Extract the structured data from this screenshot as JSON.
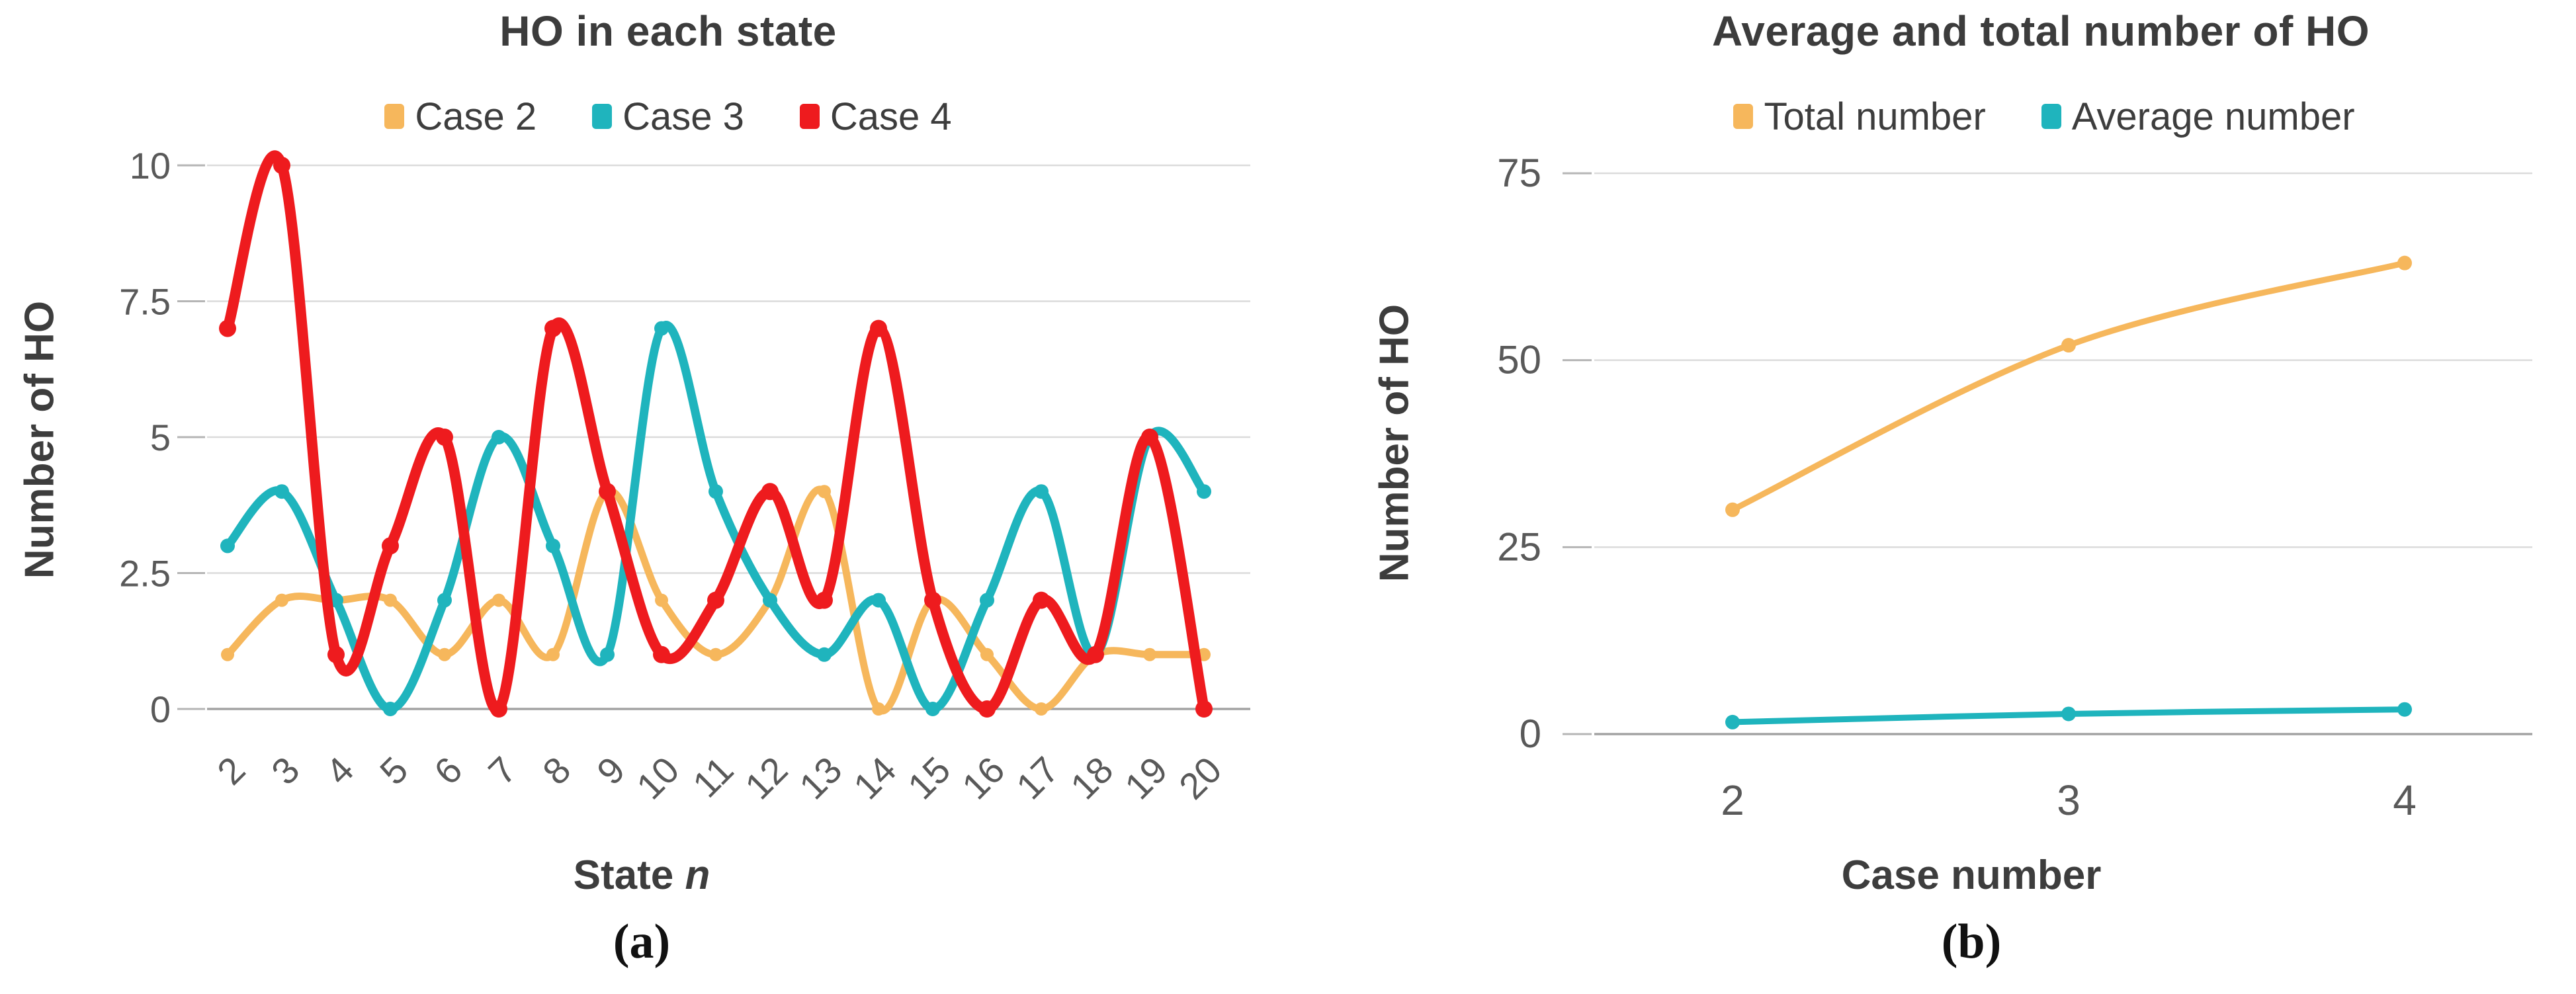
{
  "page": {
    "background": "#FFFFFF"
  },
  "colors": {
    "grid_line": "#DBDBDB",
    "axis_line": "#A3A3A3",
    "tick_mark": "#B5B5B5",
    "tick_text": "#595959",
    "title_text": "#3C3C3C",
    "axis_title_text": "#3D3D3D",
    "legend_text": "#3D3D3D",
    "caption_text": "#111111",
    "orange": "#F6B75C",
    "teal": "#1FB4BD",
    "red": "#EE1B1E"
  },
  "chart_data": [
    {
      "type": "line",
      "id": "a",
      "title": "HO in each state",
      "caption": "(a)",
      "xlabel": "State n",
      "xlabel_prefix": "State ",
      "xlabel_italic": "n",
      "ylabel": "Number of HO",
      "x": [
        2,
        3,
        4,
        5,
        6,
        7,
        8,
        9,
        10,
        11,
        12,
        13,
        14,
        15,
        16,
        17,
        18,
        19,
        20
      ],
      "ylim": [
        0,
        10
      ],
      "yticks": [
        0,
        2.5,
        5,
        7.5,
        10
      ],
      "grid": true,
      "legend_position": "top-center",
      "line_shape": "spline",
      "x_tick_rotation": -45,
      "series": [
        {
          "name": "Case 2",
          "color": "#F6B75C",
          "values": [
            1,
            2,
            2,
            2,
            1,
            2,
            1,
            4,
            2,
            1,
            2,
            4,
            0,
            2,
            1,
            0,
            1,
            1,
            1
          ]
        },
        {
          "name": "Case 3",
          "color": "#1FB4BD",
          "values": [
            3,
            4,
            2,
            0,
            2,
            5,
            3,
            1,
            7,
            4,
            2,
            1,
            2,
            0,
            2,
            4,
            1,
            5,
            4
          ]
        },
        {
          "name": "Case 4",
          "color": "#EE1B1E",
          "values": [
            7,
            10,
            1,
            3,
            5,
            0,
            7,
            4,
            1,
            2,
            4,
            2,
            7,
            2,
            0,
            2,
            1,
            5,
            0
          ]
        }
      ]
    },
    {
      "type": "line",
      "id": "b",
      "title": "Average and total number of HO",
      "caption": "(b)",
      "xlabel": "Case number",
      "xlabel_prefix": "Case number",
      "xlabel_italic": "",
      "ylabel": "Number of HO",
      "x": [
        2,
        3,
        4
      ],
      "ylim": [
        0,
        75
      ],
      "yticks": [
        0,
        25,
        50,
        75
      ],
      "grid": true,
      "legend_position": "top-center",
      "line_shape": "spline",
      "x_tick_rotation": 0,
      "series": [
        {
          "name": "Total number",
          "color": "#F6B75C",
          "values": [
            30,
            52,
            63
          ]
        },
        {
          "name": "Average number",
          "color": "#1FB4BD",
          "values": [
            1.6,
            2.7,
            3.3
          ]
        }
      ]
    }
  ]
}
